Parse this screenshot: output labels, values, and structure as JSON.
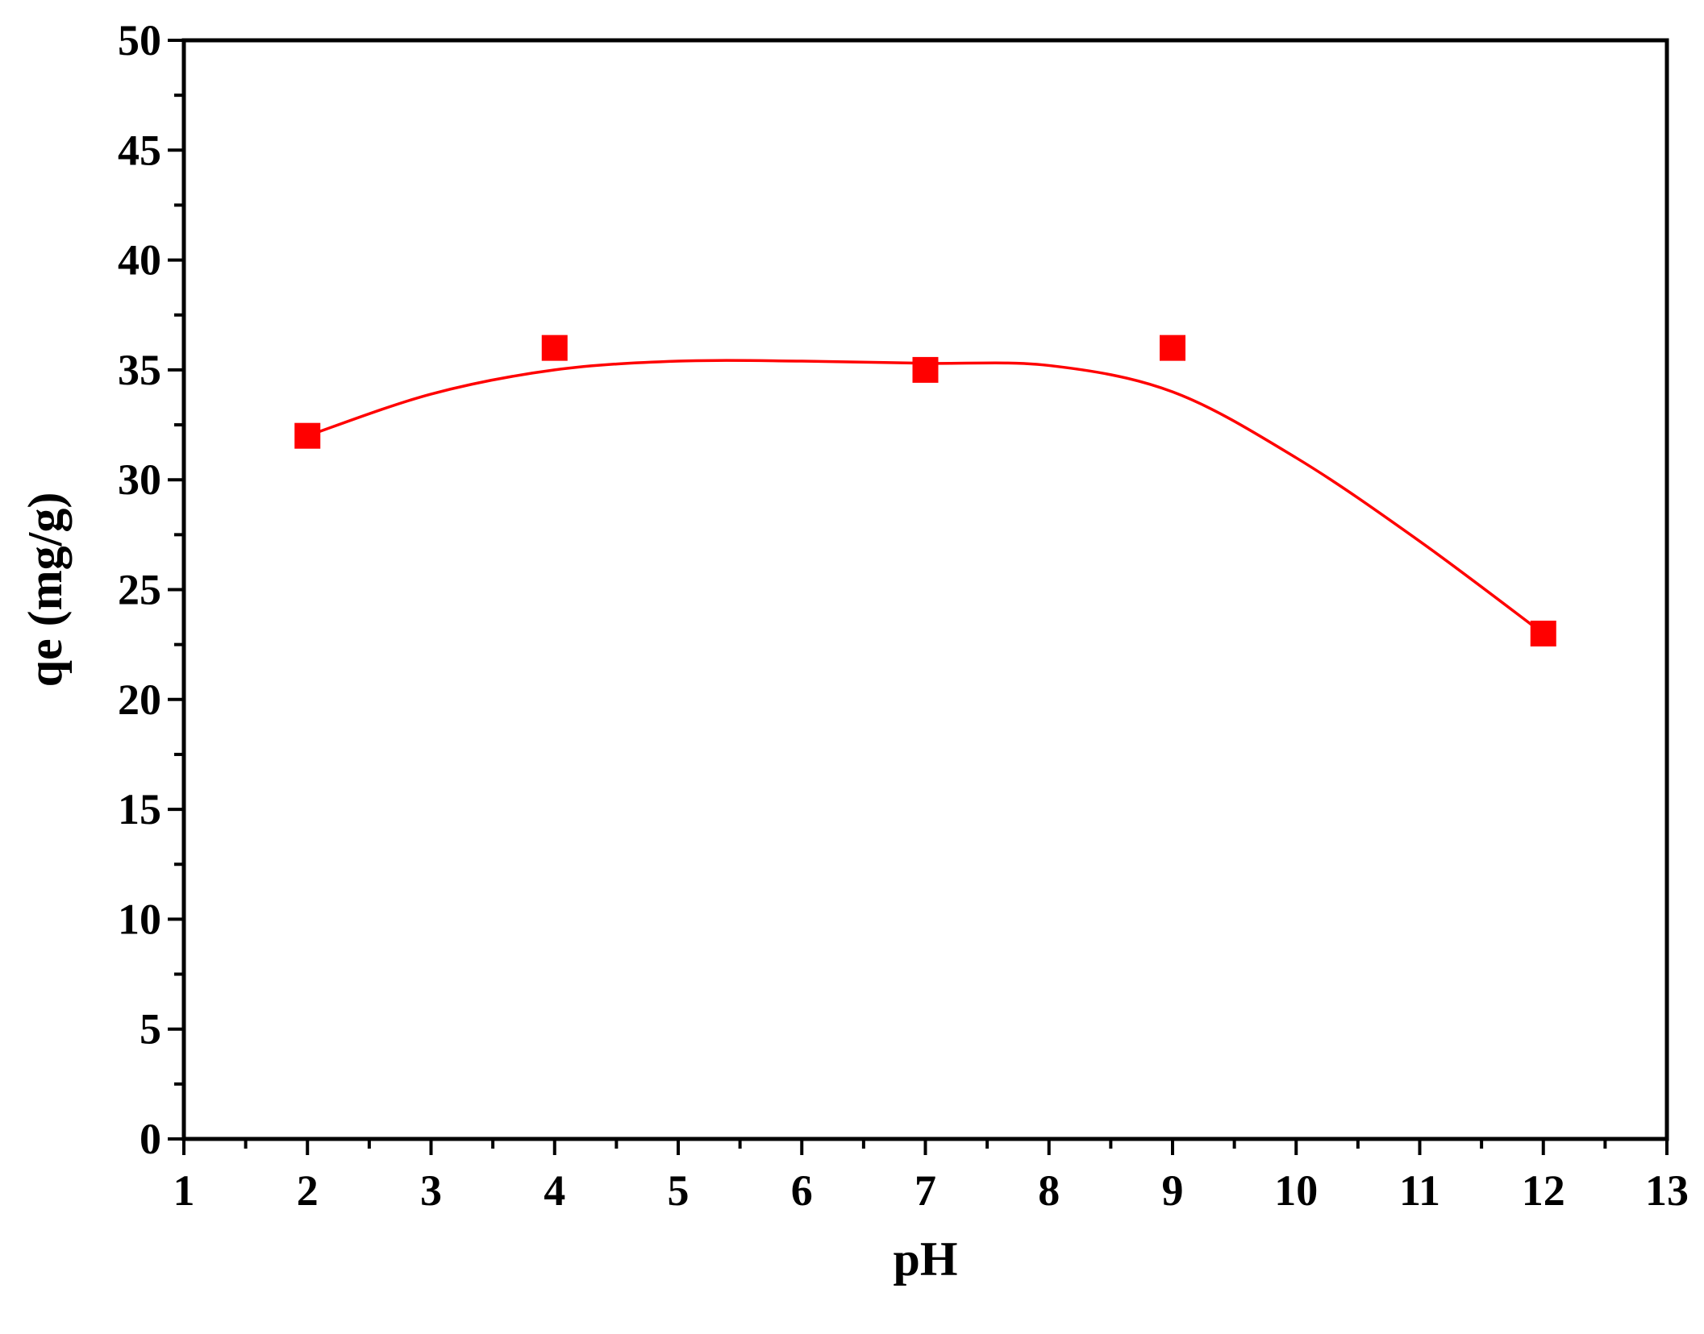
{
  "chart_data": {
    "type": "scatter",
    "title": "",
    "xlabel": "pH",
    "ylabel": "qe (mg/g)",
    "xlim": [
      1,
      13
    ],
    "ylim": [
      0,
      50
    ],
    "x_ticks": [
      1,
      2,
      3,
      4,
      5,
      6,
      7,
      8,
      9,
      10,
      11,
      12,
      13
    ],
    "y_ticks": [
      0,
      5,
      10,
      15,
      20,
      25,
      30,
      35,
      40,
      45,
      50
    ],
    "grid": false,
    "legend": "none",
    "series": [
      {
        "marker": "square",
        "color": "#ff0000",
        "points": [
          {
            "x": 2,
            "y": 32
          },
          {
            "x": 4,
            "y": 36
          },
          {
            "x": 7,
            "y": 35
          },
          {
            "x": 9,
            "y": 36
          },
          {
            "x": 12,
            "y": 23
          }
        ]
      }
    ],
    "fit_curve": {
      "type": "smooth",
      "color": "#ff0000",
      "points": [
        {
          "x": 2,
          "y": 32
        },
        {
          "x": 3,
          "y": 33.9
        },
        {
          "x": 4,
          "y": 35.0
        },
        {
          "x": 5,
          "y": 35.4
        },
        {
          "x": 6,
          "y": 35.4
        },
        {
          "x": 7,
          "y": 35.3
        },
        {
          "x": 8,
          "y": 35.2
        },
        {
          "x": 9,
          "y": 34.0
        },
        {
          "x": 10,
          "y": 31.0
        },
        {
          "x": 11,
          "y": 27.2
        },
        {
          "x": 12,
          "y": 23
        }
      ]
    }
  }
}
